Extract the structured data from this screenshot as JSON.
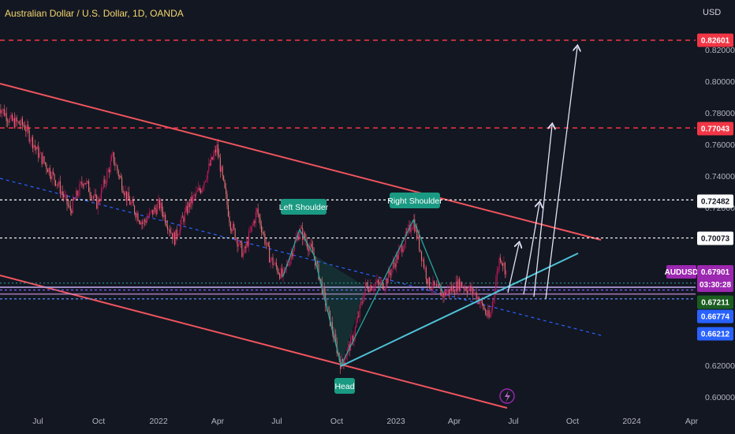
{
  "header": {
    "title": "Australian Dollar / U.S. Dollar, 1D, OANDA",
    "currency": "USD"
  },
  "colors": {
    "background": "#131722",
    "candle_up": "#c2185b",
    "candle_down": "#e57373",
    "channel": "#f0555e",
    "trendline": "#4fc3d7",
    "midline": "#2962ff",
    "resistance_red": "#f23645",
    "level_white": "#ffffff",
    "arrow": "#e1e3f5",
    "annotation": "#1a9a82",
    "symbol_badge": "#9c27b0",
    "green_badge": "#1b5e20",
    "blue_badge": "#2962ff"
  },
  "chart_data": {
    "type": "line",
    "title": "Australian Dollar / U.S. Dollar, 1D, OANDA",
    "xlabel": "",
    "ylabel": "",
    "ylim": [
      0.59,
      0.83
    ],
    "x_ticks": [
      "Jul",
      "Oct",
      "2022",
      "Apr",
      "Jul",
      "Oct",
      "2023",
      "Apr",
      "Jul",
      "Oct",
      "2024",
      "Apr"
    ],
    "y_ticks": [
      "0.82000",
      "0.80000",
      "0.78000",
      "0.76000",
      "0.74000",
      "0.72000",
      "0.62000",
      "0.60000"
    ],
    "series": [
      {
        "values": [
          [
            "2021-05-01",
            0.785
          ],
          [
            "2021-05-20",
            0.775
          ],
          [
            "2021-06-10",
            0.772
          ],
          [
            "2021-07-01",
            0.755
          ],
          [
            "2021-08-01",
            0.735
          ],
          [
            "2021-08-20",
            0.718
          ],
          [
            "2021-09-10",
            0.738
          ],
          [
            "2021-10-01",
            0.722
          ],
          [
            "2021-10-25",
            0.752
          ],
          [
            "2021-11-15",
            0.727
          ],
          [
            "2021-12-10",
            0.71
          ],
          [
            "2022-01-05",
            0.722
          ],
          [
            "2022-01-28",
            0.7
          ],
          [
            "2022-02-20",
            0.722
          ],
          [
            "2022-03-10",
            0.732
          ],
          [
            "2022-04-04",
            0.758
          ],
          [
            "2022-04-25",
            0.71
          ],
          [
            "2022-05-15",
            0.69
          ],
          [
            "2022-06-05",
            0.718
          ],
          [
            "2022-06-25",
            0.688
          ],
          [
            "2022-07-15",
            0.676
          ],
          [
            "2022-08-10",
            0.706
          ],
          [
            "2022-09-01",
            0.69
          ],
          [
            "2022-09-25",
            0.65
          ],
          [
            "2022-10-13",
            0.62
          ],
          [
            "2022-11-01",
            0.638
          ],
          [
            "2022-11-20",
            0.67
          ],
          [
            "2022-12-20",
            0.672
          ],
          [
            "2023-01-15",
            0.695
          ],
          [
            "2023-02-02",
            0.712
          ],
          [
            "2023-02-25",
            0.672
          ],
          [
            "2023-03-20",
            0.665
          ],
          [
            "2023-04-15",
            0.672
          ],
          [
            "2023-05-10",
            0.665
          ],
          [
            "2023-05-31",
            0.649
          ],
          [
            "2023-06-16",
            0.69
          ],
          [
            "2023-06-26",
            0.679
          ]
        ]
      }
    ],
    "price_levels": [
      {
        "label": "0.82601",
        "value": 0.82601
      },
      {
        "label": "0.77043",
        "value": 0.77043
      },
      {
        "label": "0.72482",
        "value": 0.72482
      },
      {
        "label": "0.70073",
        "value": 0.70073
      },
      {
        "label": "0.67211",
        "value": 0.67211
      },
      {
        "label": "0.66774",
        "value": 0.66774
      },
      {
        "label": "0.66212",
        "value": 0.66212
      }
    ],
    "current_price": {
      "symbol": "AUDUSD",
      "price": "0.67901",
      "countdown": "03:30:28"
    },
    "annotations": [
      "Left Shoulder",
      "Head",
      "Right Shoulder"
    ],
    "pattern": "inverse-head-and-shoulders",
    "grid": false
  }
}
